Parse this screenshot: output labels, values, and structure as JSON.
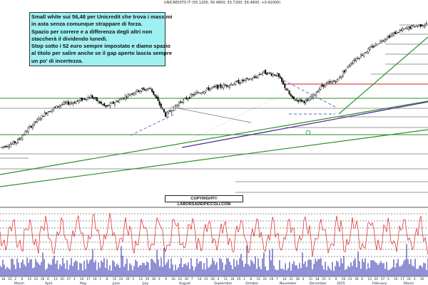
{
  "header": {
    "title": "UNICREDITO IT (55.1200, 56.4800, 55.7200, 56.4800, +0.42000)"
  },
  "annotation": {
    "lines": [
      "Small white sui 56,48 per Unicredit che trova i massimi",
      "in asta senza comunque strappare di forza.",
      "Spazio per correre e a differenza degli altri non",
      "staccherà il dividendo lunedì.",
      "Stop sotto i 52 euro sempre impostato e diamo spazio",
      "al titolo per salire anche se il gap aperto lascia sempre",
      "un po' di incertezza."
    ]
  },
  "copyright": "COPYRIGHT© LABORSADEIPICCOLI.COM",
  "colors": {
    "up_candle": "#ffffff",
    "down_candle": "#000000",
    "support_green": "#2a8f2a",
    "resistance_red": "#d42020",
    "trend_purple": "#5a2a9e",
    "trend_blue_dash": "#4a64c8",
    "oscillator": "#e02020",
    "volume": "#2222aa",
    "reference_lines": "#333333"
  },
  "chart_data": {
    "type": "candlestick",
    "price_series_trend": {
      "x_index": [
        0,
        10,
        20,
        30,
        40,
        50,
        60,
        70,
        80,
        90,
        100,
        110,
        120,
        130,
        140,
        150,
        160,
        170,
        175,
        185,
        195,
        205,
        215,
        225,
        235,
        245,
        255,
        265,
        275,
        285
      ],
      "close_relative": [
        0.06,
        0.1,
        0.22,
        0.32,
        0.38,
        0.4,
        0.44,
        0.36,
        0.42,
        0.48,
        0.5,
        0.3,
        0.4,
        0.46,
        0.5,
        0.52,
        0.55,
        0.58,
        0.62,
        0.6,
        0.42,
        0.4,
        0.52,
        0.56,
        0.7,
        0.78,
        0.86,
        0.92,
        0.96,
        0.98
      ]
    },
    "xaxis": {
      "month_labels": [
        "March",
        "April",
        "May",
        "June",
        "July",
        "August",
        "September",
        "October",
        "November",
        "December",
        "2025",
        "February",
        "March"
      ],
      "day_labels": [
        "18",
        "25",
        "2",
        "8",
        "15",
        "22",
        "29",
        "6",
        "13",
        "20",
        "27",
        "3",
        "10",
        "17",
        "24",
        "1",
        "8",
        "15",
        "22",
        "29",
        "5",
        "12",
        "19",
        "26",
        "2",
        "9",
        "16",
        "23",
        "30",
        "7",
        "14",
        "21",
        "28",
        "4",
        "11",
        "18",
        "25",
        "1",
        "8",
        "15",
        "22",
        "29",
        "7",
        "14",
        "21",
        "28",
        "4",
        "11",
        "18",
        "25",
        "2",
        "9",
        "16",
        "23",
        "30",
        "6",
        "13",
        "20",
        "27",
        "3",
        "10",
        "17",
        "24",
        "3",
        "10"
      ]
    },
    "oscillator_panel": true,
    "volume_panel": true,
    "grid": false
  }
}
